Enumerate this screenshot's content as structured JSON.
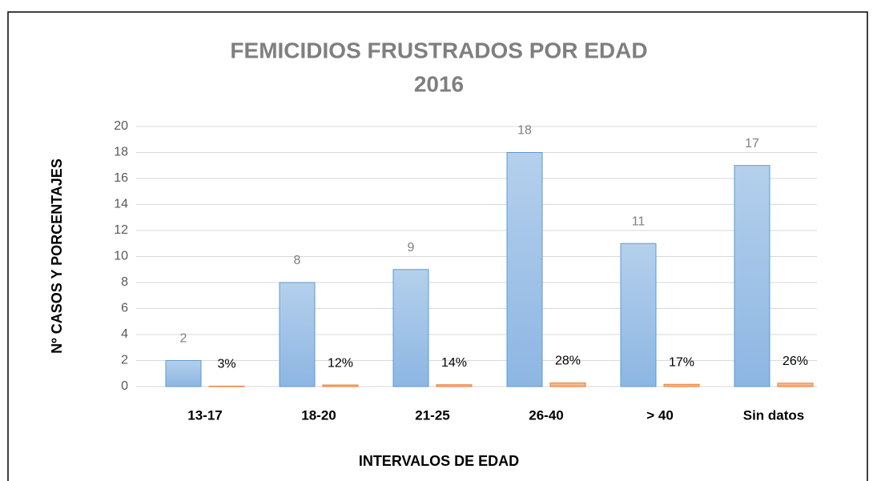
{
  "chart_data": {
    "type": "bar",
    "title": "FEMICIDIOS FRUSTRADOS POR EDAD",
    "subtitle": "2016",
    "x_label": "INTERVALOS DE EDAD",
    "y_label": "Nº CASOS Y PORCENTAJES",
    "categories": [
      "13-17",
      "18-20",
      "21-25",
      "26-40",
      "> 40",
      "Sin datos"
    ],
    "series": [
      {
        "color": "#9dc3e6",
        "values": [
          2,
          8,
          9,
          18,
          11,
          17
        ]
      },
      {
        "color": "#f4b183",
        "values": [
          0.03,
          0.12,
          0.14,
          0.28,
          0.17,
          0.26
        ],
        "value_labels": [
          "3%",
          "12%",
          "14%",
          "28%",
          "17%",
          "26%"
        ]
      }
    ],
    "ylim": [
      0,
      20
    ],
    "yticks": [
      0,
      2,
      4,
      6,
      8,
      10,
      12,
      14,
      16,
      18,
      20
    ],
    "grid": true
  }
}
